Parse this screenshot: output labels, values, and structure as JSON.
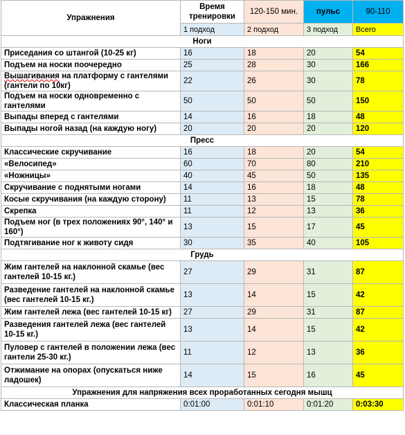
{
  "header": {
    "col_name": "Упражнения",
    "training_time": "Время тренировки",
    "minutes": "120-150 мин.",
    "pulse_label": "пульс",
    "pulse_range": "90-110",
    "sub": [
      "1 подход",
      "2 подход",
      "3 подход",
      "Всего"
    ]
  },
  "sections": [
    {
      "title": "Ноги",
      "rows": [
        {
          "name": "Приседания со штангой (10-25 кг)",
          "v": [
            "16",
            "18",
            "20",
            "54"
          ]
        },
        {
          "name": "Подъем на носки поочередно",
          "v": [
            "25",
            "28",
            "30",
            "166"
          ]
        },
        {
          "name": "Вышагивания на платформу с гантелями (гантели по 10кг)",
          "v": [
            "22",
            "26",
            "30",
            "78"
          ]
        },
        {
          "name": "Подъем на носки одновременно с гантелями",
          "v": [
            "50",
            "50",
            "50",
            "150"
          ]
        },
        {
          "name": "Выпады вперед с гантелями",
          "v": [
            "14",
            "16",
            "18",
            "48"
          ]
        },
        {
          "name": "Выпады ногой назад (на каждую ногу)",
          "v": [
            "20",
            "20",
            "20",
            "120"
          ]
        }
      ]
    },
    {
      "title": "Пресс",
      "rows": [
        {
          "name": "Классические скручивание",
          "v": [
            "16",
            "18",
            "20",
            "54"
          ]
        },
        {
          "name": "«Велосипед»",
          "v": [
            "60",
            "70",
            "80",
            "210"
          ]
        },
        {
          "name": "«Ножницы»",
          "v": [
            "40",
            "45",
            "50",
            "135"
          ]
        },
        {
          "name": "Скручивание с поднятыми ногами",
          "v": [
            "14",
            "16",
            "18",
            "48"
          ]
        },
        {
          "name": "Косые скручивания (на каждую сторону)",
          "v": [
            "11",
            "13",
            "15",
            "78"
          ]
        },
        {
          "name": "Скрепка",
          "v": [
            "11",
            "12",
            "13",
            "36"
          ]
        },
        {
          "name": "Подъем ног (в трех положениях 90°, 140° и 160°)",
          "v": [
            "13",
            "15",
            "17",
            "45"
          ]
        },
        {
          "name": "Подтягивание ног к животу сидя",
          "v": [
            "30",
            "35",
            "40",
            "105"
          ]
        }
      ]
    },
    {
      "title": "Грудь",
      "rows": [
        {
          "name": "Жим гантелей на наклонной скамье (вес гантелей 10-15 кг.)",
          "v": [
            "27",
            "29",
            "31",
            "87"
          ]
        },
        {
          "name": "Разведение гантелей на наклонной скамье (вес гантелей 10-15 кг.)",
          "v": [
            "13",
            "14",
            "15",
            "42"
          ]
        },
        {
          "name": "Жим гантелей лежа (вес гантелей 10-15 кг)",
          "v": [
            "27",
            "29",
            "31",
            "87"
          ]
        },
        {
          "name": "Разведения гантелей лежа (вес гантелей 10-15 кг.)",
          "v": [
            "13",
            "14",
            "15",
            "42"
          ]
        },
        {
          "name": "Пуловер с гантелей в положении лежа (вес гантели 25-30 кг.)",
          "v": [
            "11",
            "12",
            "13",
            "36"
          ]
        },
        {
          "name": "Отжимание на опорах (опускаться ниже ладошек)",
          "v": [
            "14",
            "15",
            "16",
            "45"
          ]
        }
      ]
    },
    {
      "title": "Упражнения для напряжения всех проработанных сегодня мышц",
      "rows": [
        {
          "name": "Классическая планка",
          "v": [
            "0:01:00",
            "0:01:10",
            "0:01:20",
            "0:03:30"
          ]
        }
      ]
    }
  ],
  "colors": {
    "set1": "#ddebf7",
    "set2": "#fce4d6",
    "set3": "#e2efda",
    "total": "#ffff00",
    "pulse": "#00b0f0"
  }
}
